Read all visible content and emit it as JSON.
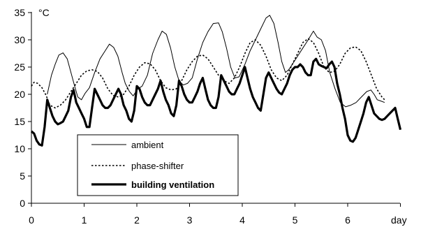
{
  "chart_data": {
    "type": "line",
    "title": "",
    "xlabel": "day",
    "ylabel": "°C",
    "xlim": [
      0,
      6.7
    ],
    "ylim": [
      0,
      35
    ],
    "xticks": [
      0,
      1,
      2,
      3,
      4,
      5,
      6
    ],
    "yticks": [
      0,
      5,
      10,
      15,
      20,
      25,
      30,
      35
    ],
    "grid": false,
    "legend_position": "bottom-left inside plot",
    "series": [
      {
        "name": "ambient",
        "style": "thin solid",
        "points": [
          [
            0.3,
            20.0
          ],
          [
            0.38,
            23.5
          ],
          [
            0.45,
            25.5
          ],
          [
            0.52,
            27.2
          ],
          [
            0.6,
            27.6
          ],
          [
            0.68,
            26.5
          ],
          [
            0.75,
            24.0
          ],
          [
            0.82,
            21.5
          ],
          [
            0.88,
            19.5
          ],
          [
            0.95,
            19.0
          ],
          [
            1.02,
            20.2
          ],
          [
            1.1,
            21.2
          ],
          [
            1.2,
            24.0
          ],
          [
            1.3,
            26.5
          ],
          [
            1.4,
            28.0
          ],
          [
            1.48,
            29.2
          ],
          [
            1.56,
            28.6
          ],
          [
            1.64,
            27.0
          ],
          [
            1.72,
            24.0
          ],
          [
            1.78,
            22.0
          ],
          [
            1.86,
            20.5
          ],
          [
            1.93,
            19.7
          ],
          [
            2.02,
            21.0
          ],
          [
            2.1,
            21.5
          ],
          [
            2.2,
            23.5
          ],
          [
            2.3,
            27.5
          ],
          [
            2.4,
            30.0
          ],
          [
            2.48,
            31.6
          ],
          [
            2.56,
            31.0
          ],
          [
            2.64,
            28.5
          ],
          [
            2.72,
            25.0
          ],
          [
            2.8,
            22.5
          ],
          [
            2.88,
            21.7
          ],
          [
            2.96,
            22.0
          ],
          [
            3.05,
            23.0
          ],
          [
            3.15,
            26.5
          ],
          [
            3.25,
            29.5
          ],
          [
            3.35,
            31.5
          ],
          [
            3.45,
            33.0
          ],
          [
            3.55,
            33.1
          ],
          [
            3.62,
            31.5
          ],
          [
            3.7,
            28.5
          ],
          [
            3.78,
            25.0
          ],
          [
            3.86,
            23.0
          ],
          [
            3.94,
            23.2
          ],
          [
            4.05,
            25.5
          ],
          [
            4.15,
            28.0
          ],
          [
            4.25,
            30.0
          ],
          [
            4.35,
            32.0
          ],
          [
            4.45,
            34.0
          ],
          [
            4.52,
            34.5
          ],
          [
            4.6,
            33.0
          ],
          [
            4.68,
            29.5
          ],
          [
            4.75,
            26.0
          ],
          [
            4.82,
            24.0
          ],
          [
            4.88,
            24.5
          ],
          [
            4.95,
            25.5
          ],
          [
            5.05,
            27.0
          ],
          [
            5.15,
            28.5
          ],
          [
            5.25,
            30.0
          ],
          [
            5.35,
            31.6
          ],
          [
            5.42,
            30.5
          ],
          [
            5.5,
            30.0
          ],
          [
            5.58,
            28.0
          ],
          [
            5.66,
            24.0
          ],
          [
            5.76,
            21.0
          ],
          [
            5.86,
            18.5
          ],
          [
            5.96,
            17.7
          ],
          [
            6.06,
            18.0
          ],
          [
            6.16,
            18.5
          ],
          [
            6.26,
            19.5
          ],
          [
            6.36,
            20.5
          ],
          [
            6.44,
            20.8
          ],
          [
            6.5,
            20.0
          ],
          [
            6.56,
            19.0
          ],
          [
            6.62,
            18.8
          ],
          [
            6.7,
            18.5
          ]
        ]
      },
      {
        "name": "phase-shifter",
        "style": "dotted",
        "points": [
          [
            0.0,
            21.5
          ],
          [
            0.05,
            22.2
          ],
          [
            0.12,
            22.0
          ],
          [
            0.2,
            21.2
          ],
          [
            0.28,
            19.8
          ],
          [
            0.35,
            18.0
          ],
          [
            0.45,
            17.5
          ],
          [
            0.55,
            18.0
          ],
          [
            0.65,
            19.0
          ],
          [
            0.75,
            20.5
          ],
          [
            0.85,
            22.0
          ],
          [
            0.95,
            23.5
          ],
          [
            1.05,
            24.3
          ],
          [
            1.15,
            24.5
          ],
          [
            1.25,
            24.2
          ],
          [
            1.35,
            23.0
          ],
          [
            1.45,
            21.0
          ],
          [
            1.55,
            19.8
          ],
          [
            1.65,
            19.5
          ],
          [
            1.75,
            20.0
          ],
          [
            1.85,
            21.5
          ],
          [
            1.95,
            23.5
          ],
          [
            2.05,
            25.0
          ],
          [
            2.15,
            25.8
          ],
          [
            2.25,
            25.6
          ],
          [
            2.35,
            24.5
          ],
          [
            2.45,
            22.5
          ],
          [
            2.55,
            21.2
          ],
          [
            2.65,
            20.8
          ],
          [
            2.75,
            21.0
          ],
          [
            2.85,
            22.5
          ],
          [
            2.95,
            24.5
          ],
          [
            3.05,
            26.0
          ],
          [
            3.15,
            27.0
          ],
          [
            3.25,
            27.2
          ],
          [
            3.35,
            26.5
          ],
          [
            3.45,
            25.0
          ],
          [
            3.55,
            23.5
          ],
          [
            3.65,
            22.5
          ],
          [
            3.75,
            22.0
          ],
          [
            3.85,
            23.0
          ],
          [
            3.95,
            25.0
          ],
          [
            4.05,
            27.5
          ],
          [
            4.15,
            29.5
          ],
          [
            4.25,
            30.0
          ],
          [
            4.35,
            29.0
          ],
          [
            4.45,
            27.0
          ],
          [
            4.55,
            24.5
          ],
          [
            4.65,
            23.0
          ],
          [
            4.75,
            22.5
          ],
          [
            4.85,
            23.5
          ],
          [
            4.95,
            25.5
          ],
          [
            5.05,
            27.5
          ],
          [
            5.15,
            29.5
          ],
          [
            5.25,
            30.2
          ],
          [
            5.35,
            29.5
          ],
          [
            5.45,
            27.5
          ],
          [
            5.55,
            25.0
          ],
          [
            5.65,
            24.0
          ],
          [
            5.75,
            24.2
          ],
          [
            5.85,
            25.5
          ],
          [
            5.95,
            27.5
          ],
          [
            6.05,
            28.5
          ],
          [
            6.15,
            28.7
          ],
          [
            6.25,
            28.0
          ],
          [
            6.35,
            26.0
          ],
          [
            6.45,
            23.5
          ],
          [
            6.55,
            21.0
          ],
          [
            6.65,
            19.5
          ],
          [
            6.7,
            19.0
          ]
        ]
      },
      {
        "name": "building ventilation",
        "style": "thick solid",
        "points": [
          [
            0.0,
            13.2
          ],
          [
            0.05,
            12.8
          ],
          [
            0.1,
            11.5
          ],
          [
            0.15,
            10.8
          ],
          [
            0.2,
            10.6
          ],
          [
            0.25,
            14.0
          ],
          [
            0.3,
            19.0
          ],
          [
            0.35,
            17.5
          ],
          [
            0.4,
            16.0
          ],
          [
            0.45,
            15.0
          ],
          [
            0.5,
            14.5
          ],
          [
            0.55,
            14.7
          ],
          [
            0.6,
            15.0
          ],
          [
            0.65,
            16.0
          ],
          [
            0.7,
            17.0
          ],
          [
            0.75,
            19.5
          ],
          [
            0.8,
            20.8
          ],
          [
            0.85,
            18.5
          ],
          [
            0.9,
            17.5
          ],
          [
            0.95,
            16.5
          ],
          [
            1.0,
            15.5
          ],
          [
            1.05,
            14.0
          ],
          [
            1.1,
            14.0
          ],
          [
            1.15,
            17.5
          ],
          [
            1.2,
            21.0
          ],
          [
            1.25,
            20.0
          ],
          [
            1.3,
            19.0
          ],
          [
            1.35,
            18.0
          ],
          [
            1.4,
            17.5
          ],
          [
            1.45,
            17.5
          ],
          [
            1.5,
            18.0
          ],
          [
            1.55,
            19.0
          ],
          [
            1.6,
            20.0
          ],
          [
            1.65,
            21.0
          ],
          [
            1.7,
            20.0
          ],
          [
            1.75,
            18.0
          ],
          [
            1.8,
            17.0
          ],
          [
            1.85,
            15.5
          ],
          [
            1.9,
            15.0
          ],
          [
            1.95,
            17.0
          ],
          [
            2.0,
            21.5
          ],
          [
            2.05,
            21.0
          ],
          [
            2.1,
            19.5
          ],
          [
            2.15,
            18.5
          ],
          [
            2.2,
            18.0
          ],
          [
            2.25,
            18.0
          ],
          [
            2.3,
            19.0
          ],
          [
            2.35,
            20.0
          ],
          [
            2.4,
            21.0
          ],
          [
            2.45,
            22.5
          ],
          [
            2.5,
            20.5
          ],
          [
            2.55,
            19.0
          ],
          [
            2.6,
            18.0
          ],
          [
            2.65,
            16.5
          ],
          [
            2.7,
            16.0
          ],
          [
            2.75,
            18.0
          ],
          [
            2.8,
            22.5
          ],
          [
            2.85,
            21.5
          ],
          [
            2.9,
            20.0
          ],
          [
            2.95,
            19.0
          ],
          [
            3.0,
            18.5
          ],
          [
            3.05,
            18.5
          ],
          [
            3.1,
            19.5
          ],
          [
            3.15,
            20.5
          ],
          [
            3.2,
            22.0
          ],
          [
            3.25,
            23.0
          ],
          [
            3.3,
            21.0
          ],
          [
            3.35,
            19.0
          ],
          [
            3.4,
            18.0
          ],
          [
            3.45,
            17.5
          ],
          [
            3.5,
            17.5
          ],
          [
            3.55,
            19.5
          ],
          [
            3.6,
            23.5
          ],
          [
            3.65,
            22.5
          ],
          [
            3.7,
            21.5
          ],
          [
            3.75,
            20.5
          ],
          [
            3.8,
            20.0
          ],
          [
            3.85,
            20.0
          ],
          [
            3.9,
            21.0
          ],
          [
            3.95,
            22.0
          ],
          [
            4.0,
            23.5
          ],
          [
            4.05,
            25.0
          ],
          [
            4.1,
            23.0
          ],
          [
            4.15,
            21.0
          ],
          [
            4.2,
            19.5
          ],
          [
            4.25,
            18.5
          ],
          [
            4.3,
            17.5
          ],
          [
            4.35,
            17.0
          ],
          [
            4.4,
            20.0
          ],
          [
            4.45,
            23.0
          ],
          [
            4.5,
            24.0
          ],
          [
            4.55,
            23.0
          ],
          [
            4.6,
            22.0
          ],
          [
            4.65,
            21.0
          ],
          [
            4.7,
            20.3
          ],
          [
            4.75,
            20.0
          ],
          [
            4.8,
            21.0
          ],
          [
            4.85,
            22.0
          ],
          [
            4.9,
            23.5
          ],
          [
            4.95,
            24.5
          ],
          [
            5.0,
            25.0
          ],
          [
            5.05,
            25.0
          ],
          [
            5.1,
            25.5
          ],
          [
            5.15,
            25.0
          ],
          [
            5.2,
            24.0
          ],
          [
            5.25,
            23.5
          ],
          [
            5.3,
            23.5
          ],
          [
            5.35,
            26.0
          ],
          [
            5.4,
            26.5
          ],
          [
            5.45,
            25.5
          ],
          [
            5.5,
            25.2
          ],
          [
            5.55,
            25.0
          ],
          [
            5.6,
            24.8
          ],
          [
            5.65,
            25.5
          ],
          [
            5.7,
            26.0
          ],
          [
            5.75,
            25.0
          ],
          [
            5.8,
            22.0
          ],
          [
            5.85,
            20.0
          ],
          [
            5.9,
            17.5
          ],
          [
            5.95,
            15.5
          ],
          [
            6.0,
            12.5
          ],
          [
            6.05,
            11.5
          ],
          [
            6.1,
            11.3
          ],
          [
            6.15,
            12.0
          ],
          [
            6.2,
            13.5
          ],
          [
            6.25,
            15.0
          ],
          [
            6.3,
            16.5
          ],
          [
            6.35,
            18.5
          ],
          [
            6.4,
            19.5
          ],
          [
            6.45,
            18.0
          ],
          [
            6.5,
            16.5
          ],
          [
            6.55,
            16.0
          ],
          [
            6.6,
            15.5
          ],
          [
            6.65,
            15.3
          ],
          [
            6.7,
            15.5
          ],
          [
            6.75,
            16.0
          ],
          [
            6.8,
            16.5
          ],
          [
            6.85,
            17.0
          ],
          [
            6.9,
            17.5
          ],
          [
            6.95,
            15.5
          ],
          [
            7.0,
            13.5
          ]
        ]
      }
    ]
  },
  "colors": {
    "line": "#000000",
    "background": "#ffffff"
  }
}
